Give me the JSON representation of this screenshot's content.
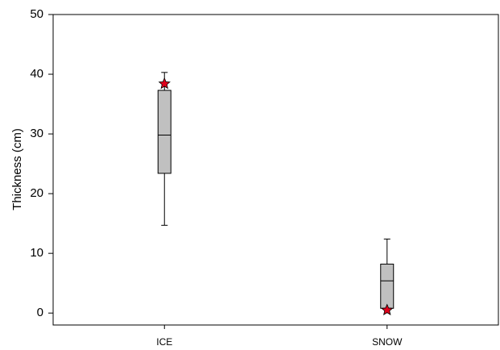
{
  "chart_data": {
    "type": "box",
    "y_label": "Thickness (cm)",
    "categories": [
      "ICE",
      "SNOW"
    ],
    "boxes": [
      {
        "min": 14.7,
        "q1": 23.4,
        "median": 29.8,
        "q3": 37.3,
        "max": 40.3
      },
      {
        "min": 0.8,
        "q1": 0.8,
        "median": 5.4,
        "q3": 8.2,
        "max": 12.4
      }
    ],
    "box_color": "#c0c0c0",
    "markers": [
      38.4,
      0.5
    ],
    "marker_color": "#e0001b",
    "ylim": [
      -2,
      50
    ],
    "yticks": [
      0,
      10,
      20,
      30,
      40,
      50
    ]
  }
}
